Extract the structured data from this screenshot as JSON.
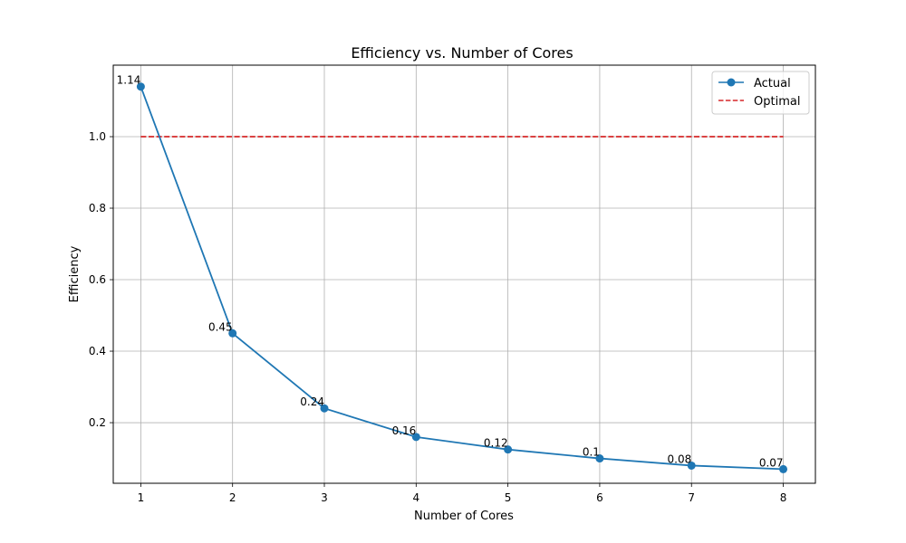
{
  "chart_data": {
    "type": "line",
    "title": "Efficiency vs. Number of Cores",
    "xlabel": "Number of Cores",
    "ylabel": "Efficiency",
    "x": [
      1,
      2,
      3,
      4,
      5,
      6,
      7,
      8
    ],
    "xlim": [
      0.7,
      8.35
    ],
    "ylim": [
      0.0305,
      1.2
    ],
    "xticks": [
      1,
      2,
      3,
      4,
      5,
      6,
      7,
      8
    ],
    "yticks": [
      0.2,
      0.4,
      0.6,
      0.8,
      1.0
    ],
    "ytick_labels": [
      "0.2",
      "0.4",
      "0.6",
      "0.8",
      "1.0"
    ],
    "grid": true,
    "legend_position": "top-right",
    "series": [
      {
        "name": "Actual",
        "style": "solid-line-with-markers",
        "color": "#1f77b4",
        "values": [
          1.14,
          0.45,
          0.24,
          0.16,
          0.125,
          0.1,
          0.08,
          0.07
        ],
        "data_labels": [
          "1.14",
          "0.45",
          "0.24",
          "0.16",
          "0.12",
          "0.1",
          "0.08",
          "0.07"
        ]
      },
      {
        "name": "Optimal",
        "style": "dashed-line",
        "color": "#d62728",
        "values": [
          1.0,
          1.0,
          1.0,
          1.0,
          1.0,
          1.0,
          1.0,
          1.0
        ]
      }
    ]
  }
}
